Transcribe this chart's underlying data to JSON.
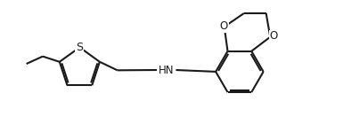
{
  "bg_color": "#ffffff",
  "line_color": "#1a1a1a",
  "lw": 1.5,
  "fs": 8.5,
  "figsize": [
    3.85,
    1.58
  ],
  "dpi": 100,
  "xlim": [
    0,
    10
  ],
  "ylim": [
    0,
    4.1
  ]
}
